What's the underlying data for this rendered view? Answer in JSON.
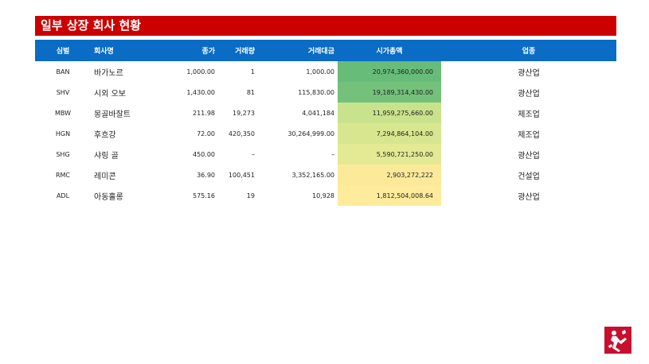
{
  "title": "일부 상장 회사 현황",
  "headers": {
    "symbol": "심벌",
    "name": "회사명",
    "price": "종가",
    "volume": "거래량",
    "turnover": "거래대금",
    "mcap": "시가총액",
    "industry": "업종"
  },
  "rows": [
    {
      "symbol": "BAN",
      "name": "바가노르",
      "price": "1,000.00",
      "volume": "1",
      "turnover": "1,000.00",
      "mcap": "20,974,360,000.00",
      "industry": "광산업",
      "mcap_color": "#67bc7a"
    },
    {
      "symbol": "SHV",
      "name": "시외 오보",
      "price": "1,430.00",
      "volume": "81",
      "turnover": "115,830.00",
      "mcap": "19,189,314,430.00",
      "industry": "광산업",
      "mcap_color": "#74c17b"
    },
    {
      "symbol": "MBW",
      "name": "몽골바잘트",
      "price": "211.98",
      "volume": "19,273",
      "turnover": "4,041,184",
      "mcap": "11,959,275,660.00",
      "industry": "제조업",
      "mcap_color": "#c9e28c"
    },
    {
      "symbol": "HGN",
      "name": "후흐강",
      "price": "72.00",
      "volume": "420,350",
      "turnover": "30,264,999.00",
      "mcap": "7,294,864,104.00",
      "industry": "제조업",
      "mcap_color": "#d8e78f"
    },
    {
      "symbol": "SHG",
      "name": "샤링 골",
      "price": "450.00",
      "volume": "–",
      "turnover": "–",
      "mcap": "5,590,721,250.00",
      "industry": "광산업",
      "mcap_color": "#e3ea93"
    },
    {
      "symbol": "RMC",
      "name": "레미콘",
      "price": "36.90",
      "volume": "100,451",
      "turnover": "3,352,165.00",
      "mcap": "2,903,272,222",
      "industry": "건설업",
      "mcap_color": "#fcea9a"
    },
    {
      "symbol": "ADL",
      "name": "아동홀롱",
      "price": "575.16",
      "volume": "19",
      "turnover": "10,928",
      "mcap": "1,812,504,008.64",
      "industry": "광산업",
      "mcap_color": "#feeb9b"
    }
  ],
  "colors": {
    "title_bg": "#cc0000",
    "header_bg": "#0a6cc4"
  },
  "logo_icon": "figure-logo-icon"
}
